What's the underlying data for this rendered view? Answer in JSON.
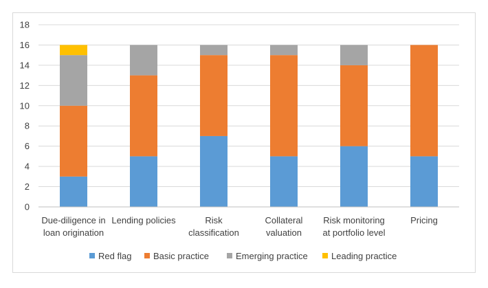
{
  "chart_data": {
    "type": "bar",
    "stacked": true,
    "title": "",
    "xlabel": "",
    "ylabel": "",
    "ylim": [
      0,
      18
    ],
    "yticks": [
      0,
      2,
      4,
      6,
      8,
      10,
      12,
      14,
      16,
      18
    ],
    "grid": true,
    "legend_position": "bottom",
    "categories": [
      [
        "Due-diligence in",
        "loan origination"
      ],
      [
        "Lending policies"
      ],
      [
        "Risk",
        "classification"
      ],
      [
        "Collateral",
        "valuation"
      ],
      [
        "Risk monitoring",
        "at portfolio level"
      ],
      [
        "Pricing"
      ]
    ],
    "series": [
      {
        "name": "Red flag",
        "color": "#5B9BD5",
        "values": [
          3,
          5,
          7,
          5,
          6,
          5
        ]
      },
      {
        "name": "Basic practice",
        "color": "#ED7D31",
        "values": [
          7,
          8,
          8,
          10,
          8,
          11
        ]
      },
      {
        "name": "Emerging practice",
        "color": "#A5A5A5",
        "values": [
          5,
          3,
          1,
          1,
          2,
          0
        ]
      },
      {
        "name": "Leading practice",
        "color": "#FFC000",
        "values": [
          1,
          0,
          0,
          0,
          0,
          0
        ]
      }
    ],
    "colors": {
      "grid": "#D9D9D9",
      "axis": "#BFBFBF",
      "text": "#404040",
      "frame": "#D9D9D9"
    }
  }
}
